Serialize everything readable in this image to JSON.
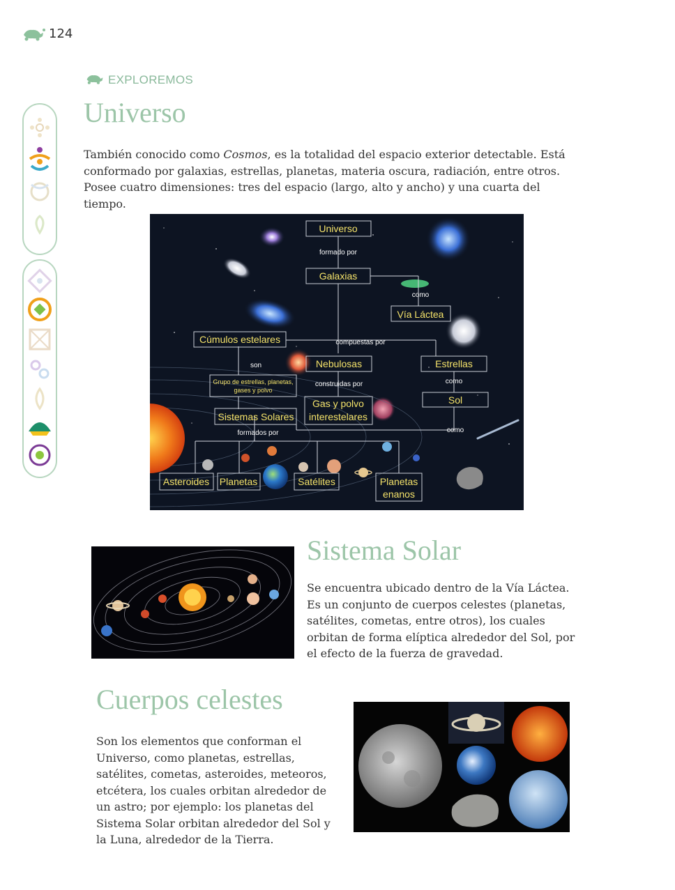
{
  "header": {
    "page_number": "124",
    "section_label": "EXPLOREMOS"
  },
  "universo": {
    "title": "Universo",
    "intro_before": "También conocido como ",
    "intro_italic": "Cosmos",
    "intro_after": ", es la totalidad del espacio exterior detectable. Está conformado por galaxias, estrellas, planetas, materia oscura, radiación, entre otros. Posee cuatro dimensiones: tres del espacio (largo, alto y ancho) y una cuarta del tiempo."
  },
  "diagram": {
    "universo": "Universo",
    "formado_por": "formado por",
    "galaxias": "Galaxias",
    "como1": "como",
    "via_lactea": "Vía Láctea",
    "cumulos": "Cúmulos estelares",
    "compuestas_por": "compuestas por",
    "son": "son",
    "nebulosas": "Nebulosas",
    "estrellas": "Estrellas",
    "grupo_line1": "Grupo de estrellas, planetas,",
    "grupo_line2": "gases y polvo",
    "construidas_por": "construidas por",
    "como2": "como",
    "gas_line1": "Gas y polvo",
    "gas_line2": "interestelares",
    "sol": "Sol",
    "sistemas_solares": "Sistemas Solares",
    "formados_por": "formados por",
    "como3": "como",
    "asteroides": "Asteroides",
    "planetas": "Planetas",
    "satelites": "Satélites",
    "planetas_enanos_line1": "Planetas",
    "planetas_enanos_line2": "enanos"
  },
  "sistema_solar": {
    "title": "Sistema Solar",
    "text": "Se encuentra ubicado dentro de la Vía Láctea. Es un conjunto de cuerpos celestes (planetas, satélites, cometas, entre otros), los cuales orbitan de forma elíptica alrededor del Sol, por el efecto de la fuerza de gravedad."
  },
  "cuerpos_celestes": {
    "title": "Cuerpos celestes",
    "text": "Son los elementos que conforman el Universo, como planetas, estrellas, satélites, cometas, asteroides, meteoros, etcétera, los cuales orbitan alrededor de un astro; por ejemplo: los planetas del Sistema Solar orbitan alrededor del Sol y la Luna, alrededor de la Tierra."
  },
  "colors": {
    "heading": "#9cc5a8",
    "diagram_text": "#f5e36a",
    "diagram_bg": "#0d1422"
  }
}
